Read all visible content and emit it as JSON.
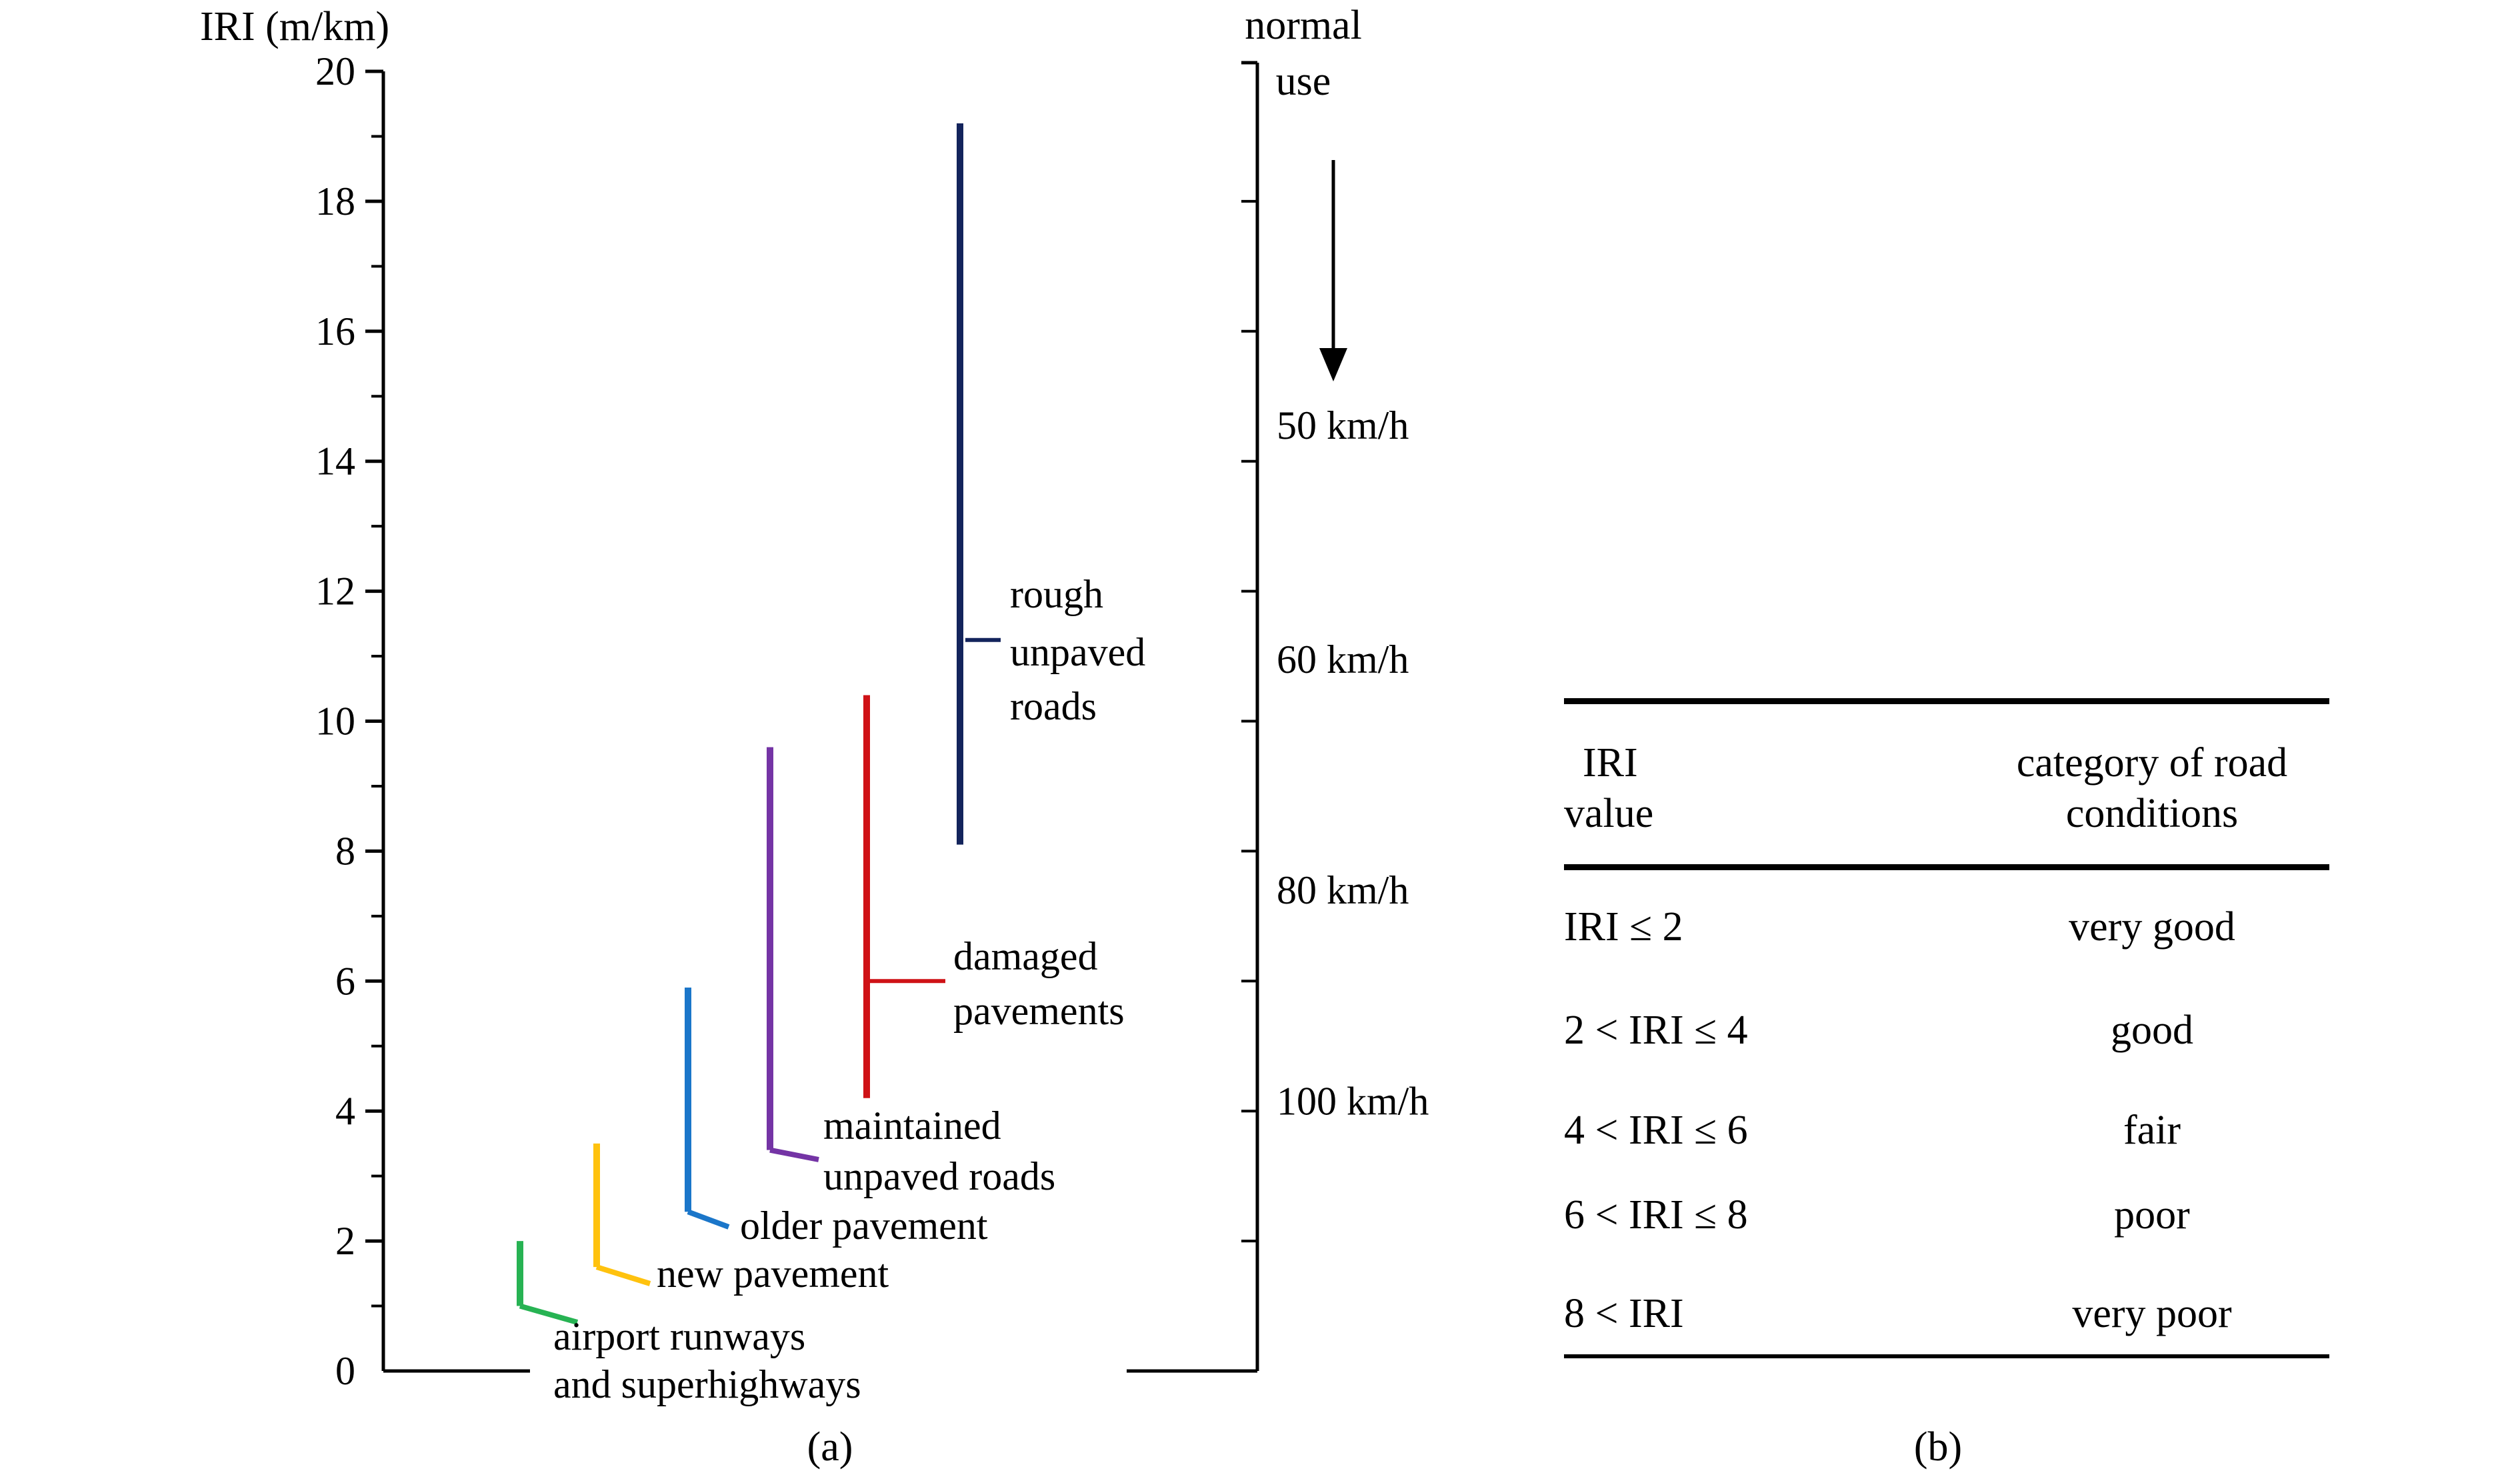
{
  "figure": {
    "background": "#ffffff",
    "caption_a": "(a)",
    "caption_b": "(b)"
  },
  "chart_data": {
    "type": "range-bars",
    "title": "",
    "ylabel": "IRI (m/km)",
    "ylim": [
      0,
      20
    ],
    "ytick_major_step": 2,
    "ytick_minor_step": 1,
    "grid": false,
    "series": [
      {
        "name": "airport runways and superhighways",
        "label_lines": [
          "airport runways",
          "and superhighways"
        ],
        "range": [
          1.0,
          2.0
        ],
        "color": "#27b353"
      },
      {
        "name": "new pavement",
        "label_lines": [
          "new pavement"
        ],
        "range": [
          1.6,
          3.5
        ],
        "color": "#ffc20e"
      },
      {
        "name": "older pavement",
        "label_lines": [
          "older pavement"
        ],
        "range": [
          2.45,
          5.9
        ],
        "color": "#1b76c9"
      },
      {
        "name": "maintained unpaved roads",
        "label_lines": [
          "maintained",
          "unpaved roads"
        ],
        "range": [
          3.4,
          9.6
        ],
        "color": "#7434a5"
      },
      {
        "name": "damaged pavements",
        "label_lines": [
          "damaged",
          "pavements"
        ],
        "range": [
          4.2,
          10.4
        ],
        "color": "#cf1216"
      },
      {
        "name": "rough unpaved roads",
        "label_lines": [
          "rough",
          "unpaved",
          "roads"
        ],
        "range": [
          8.1,
          19.2
        ],
        "color": "#13245c"
      }
    ],
    "right_axis": {
      "top_label_lines": [
        "normal",
        "use"
      ],
      "arrow": "down",
      "tick_values": [
        2,
        4,
        6,
        8,
        10,
        12,
        14,
        16,
        18
      ],
      "speed_labels": [
        {
          "text": "50 km/h",
          "iri": 14.55
        },
        {
          "text": "60 km/h",
          "iri": 10.95
        },
        {
          "text": "80 km/h",
          "iri": 7.4
        },
        {
          "text": "100 km/h",
          "iri": 4.15
        }
      ]
    }
  },
  "table": {
    "col1_header_lines": [
      "IRI",
      "value"
    ],
    "col2_header_lines": [
      "category of road",
      "conditions"
    ],
    "rows": [
      {
        "range": "IRI ≤ 2",
        "category": "very good"
      },
      {
        "range": "2 < IRI ≤ 4",
        "category": "good"
      },
      {
        "range": "4 < IRI ≤ 6",
        "category": "fair"
      },
      {
        "range": "6 < IRI ≤ 8",
        "category": "poor"
      },
      {
        "range": "8 < IRI",
        "category": "very poor"
      }
    ]
  }
}
